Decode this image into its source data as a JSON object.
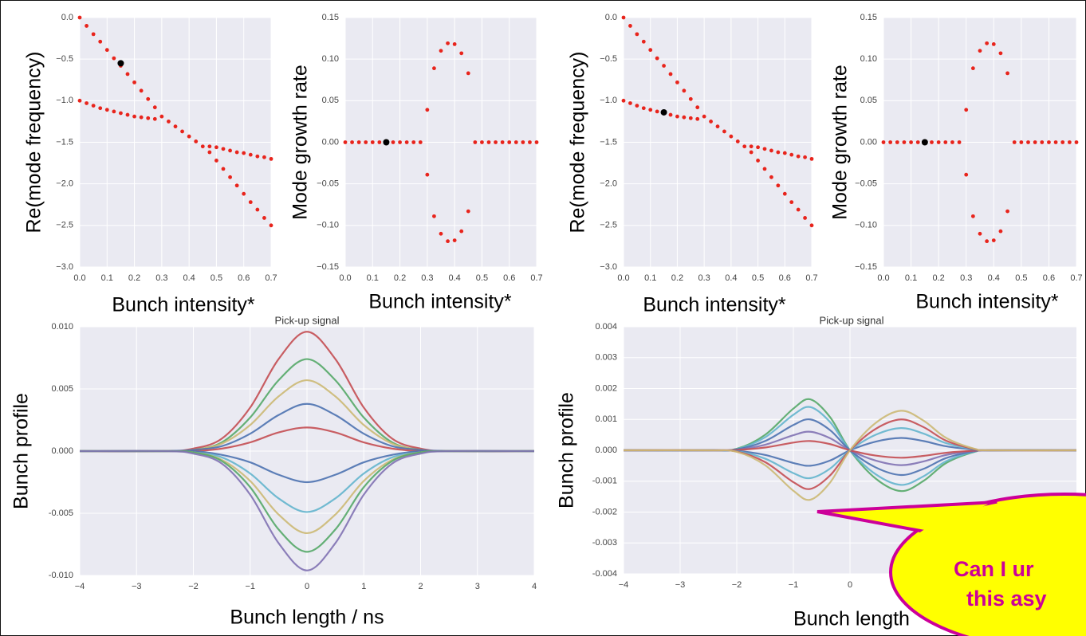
{
  "chart_data": [
    {
      "type": "scatter",
      "xlabel": "Bunch intensity*",
      "ylabel": "Re(mode frequency)",
      "x": [
        0,
        0.025,
        0.05,
        0.075,
        0.1,
        0.125,
        0.15,
        0.175,
        0.2,
        0.225,
        0.25,
        0.275,
        0.3,
        0.325,
        0.35,
        0.375,
        0.4,
        0.425,
        0.45,
        0.475,
        0.5,
        0.525,
        0.55,
        0.575,
        0.6,
        0.625,
        0.65,
        0.675,
        0.7
      ],
      "series": [
        {
          "color": "#e8241c",
          "values": [
            0,
            -0.1,
            -0.2,
            -0.29,
            -0.39,
            -0.49,
            -0.58,
            -0.68,
            -0.78,
            -0.88,
            -0.98,
            -1.08,
            -1.19,
            -1.25,
            -1.31,
            -1.37,
            -1.43,
            -1.49,
            -1.55,
            -1.62,
            -1.72,
            -1.82,
            -1.92,
            -2.02,
            -2.12,
            -2.22,
            -2.31,
            -2.41,
            -2.5
          ]
        },
        {
          "color": "#e8241c",
          "values": [
            -1,
            -1.03,
            -1.06,
            -1.09,
            -1.11,
            -1.13,
            -1.15,
            -1.17,
            -1.19,
            -1.2,
            -1.21,
            -1.22,
            null,
            null,
            null,
            null,
            null,
            null,
            null,
            -1.55,
            -1.56,
            -1.58,
            -1.6,
            -1.62,
            -1.63,
            -1.65,
            -1.67,
            -1.68,
            -1.7
          ]
        }
      ],
      "highlight": {
        "x": 0.15,
        "y": -0.55,
        "color": "#000000"
      },
      "xlim": [
        0,
        0.7
      ],
      "xticks": [
        {
          "value": 0,
          "label": "0.0"
        },
        0.1,
        0.2,
        0.3,
        0.4,
        0.5,
        0.6,
        0.7
      ],
      "ylim": [
        -3,
        0
      ],
      "yticks": [
        {
          "value": 0,
          "label": "0.0"
        },
        {
          "value": -0.5,
          "label": "−0.5"
        },
        {
          "value": -1,
          "label": "−1.0"
        },
        {
          "value": -1.5,
          "label": "−1.5"
        },
        {
          "value": -2,
          "label": "−2.0"
        },
        {
          "value": -2.5,
          "label": "−2.5"
        },
        {
          "value": -3,
          "label": "−3.0"
        }
      ],
      "grid": true
    },
    {
      "type": "scatter",
      "xlabel": "Bunch intensity*",
      "ylabel": "Mode growth rate",
      "x": [
        0,
        0.025,
        0.05,
        0.075,
        0.1,
        0.125,
        0.15,
        0.175,
        0.2,
        0.225,
        0.25,
        0.275,
        0.3,
        0.325,
        0.35,
        0.375,
        0.4,
        0.425,
        0.45,
        0.475,
        0.5,
        0.525,
        0.55,
        0.575,
        0.6,
        0.625,
        0.65,
        0.675,
        0.7
      ],
      "series": [
        {
          "color": "#e8241c",
          "values": [
            0,
            0,
            0,
            0,
            0,
            0,
            0,
            0,
            0,
            0,
            0,
            0,
            0.039,
            0.089,
            0.11,
            0.119,
            0.118,
            0.107,
            0.083,
            0,
            0,
            0,
            0,
            0,
            0,
            0,
            0,
            0,
            0
          ]
        },
        {
          "color": "#e8241c",
          "values": [
            null,
            null,
            null,
            null,
            null,
            null,
            null,
            null,
            null,
            null,
            null,
            null,
            -0.039,
            -0.089,
            -0.11,
            -0.119,
            -0.118,
            -0.107,
            -0.083,
            null,
            null,
            null,
            null,
            null,
            null,
            null,
            null,
            null,
            null
          ]
        }
      ],
      "highlight": {
        "x": 0.15,
        "y": 0,
        "color": "#000000"
      },
      "xlim": [
        0,
        0.7
      ],
      "xticks": [
        {
          "value": 0,
          "label": "0.0"
        },
        0.1,
        0.2,
        0.3,
        0.4,
        0.5,
        0.6,
        0.7
      ],
      "ylim": [
        -0.15,
        0.15
      ],
      "yticks": [
        0.15,
        {
          "value": 0.1,
          "label": "0.10"
        },
        0.05,
        {
          "value": 0,
          "label": "0.00"
        },
        {
          "value": -0.05,
          "label": "−0.05"
        },
        {
          "value": -0.1,
          "label": "−0.10"
        },
        {
          "value": -0.15,
          "label": "−0.15"
        }
      ],
      "grid": true
    },
    {
      "type": "scatter",
      "xlabel": "Bunch intensity*",
      "ylabel": "Re(mode frequency)",
      "x": [
        0,
        0.025,
        0.05,
        0.075,
        0.1,
        0.125,
        0.15,
        0.175,
        0.2,
        0.225,
        0.25,
        0.275,
        0.3,
        0.325,
        0.35,
        0.375,
        0.4,
        0.425,
        0.45,
        0.475,
        0.5,
        0.525,
        0.55,
        0.575,
        0.6,
        0.625,
        0.65,
        0.675,
        0.7
      ],
      "series": [
        {
          "color": "#e8241c",
          "values": [
            0,
            -0.1,
            -0.2,
            -0.29,
            -0.39,
            -0.49,
            -0.58,
            -0.68,
            -0.78,
            -0.88,
            -0.98,
            -1.08,
            -1.19,
            -1.25,
            -1.31,
            -1.37,
            -1.43,
            -1.49,
            -1.55,
            -1.62,
            -1.72,
            -1.82,
            -1.92,
            -2.02,
            -2.12,
            -2.22,
            -2.31,
            -2.41,
            -2.5
          ]
        },
        {
          "color": "#e8241c",
          "values": [
            -1,
            -1.03,
            -1.06,
            -1.09,
            -1.11,
            -1.13,
            -1.15,
            -1.17,
            -1.19,
            -1.2,
            -1.21,
            -1.22,
            null,
            null,
            null,
            null,
            null,
            null,
            null,
            -1.55,
            -1.56,
            -1.58,
            -1.6,
            -1.62,
            -1.63,
            -1.65,
            -1.67,
            -1.68,
            -1.7
          ]
        }
      ],
      "highlight": {
        "x": 0.15,
        "y": -1.14,
        "color": "#000000"
      },
      "xlim": [
        0,
        0.7
      ],
      "xticks": [
        {
          "value": 0,
          "label": "0.0"
        },
        0.1,
        0.2,
        0.3,
        0.4,
        0.5,
        0.6,
        0.7
      ],
      "ylim": [
        -3,
        0
      ],
      "yticks": [
        {
          "value": 0,
          "label": "0.0"
        },
        {
          "value": -0.5,
          "label": "−0.5"
        },
        {
          "value": -1,
          "label": "−1.0"
        },
        {
          "value": -1.5,
          "label": "−1.5"
        },
        {
          "value": -2,
          "label": "−2.0"
        },
        {
          "value": -2.5,
          "label": "−2.5"
        },
        {
          "value": -3,
          "label": "−3.0"
        }
      ],
      "grid": true
    },
    {
      "type": "scatter",
      "xlabel": "Bunch intensity*",
      "ylabel": "Mode growth rate",
      "x": [
        0,
        0.025,
        0.05,
        0.075,
        0.1,
        0.125,
        0.15,
        0.175,
        0.2,
        0.225,
        0.25,
        0.275,
        0.3,
        0.325,
        0.35,
        0.375,
        0.4,
        0.425,
        0.45,
        0.475,
        0.5,
        0.525,
        0.55,
        0.575,
        0.6,
        0.625,
        0.65,
        0.675,
        0.7
      ],
      "series": [
        {
          "color": "#e8241c",
          "values": [
            0,
            0,
            0,
            0,
            0,
            0,
            0,
            0,
            0,
            0,
            0,
            0,
            0.039,
            0.089,
            0.11,
            0.119,
            0.118,
            0.107,
            0.083,
            0,
            0,
            0,
            0,
            0,
            0,
            0,
            0,
            0,
            0
          ]
        },
        {
          "color": "#e8241c",
          "values": [
            null,
            null,
            null,
            null,
            null,
            null,
            null,
            null,
            null,
            null,
            null,
            null,
            -0.039,
            -0.089,
            -0.11,
            -0.119,
            -0.118,
            -0.107,
            -0.083,
            null,
            null,
            null,
            null,
            null,
            null,
            null,
            null,
            null,
            null
          ]
        }
      ],
      "highlight": {
        "x": 0.15,
        "y": 0,
        "color": "#000000"
      },
      "xlim": [
        0,
        0.7
      ],
      "xticks": [
        {
          "value": 0,
          "label": "0.0"
        },
        0.1,
        0.2,
        0.3,
        0.4,
        0.5,
        0.6,
        0.7
      ],
      "ylim": [
        -0.15,
        0.15
      ],
      "yticks": [
        0.15,
        {
          "value": 0.1,
          "label": "0.10"
        },
        0.05,
        {
          "value": 0,
          "label": "0.00"
        },
        {
          "value": -0.05,
          "label": "−0.05"
        },
        {
          "value": -0.1,
          "label": "−0.10"
        },
        {
          "value": -0.15,
          "label": "−0.15"
        }
      ],
      "grid": true
    },
    {
      "type": "line",
      "title": "Pick-up signal",
      "xlabel": "Bunch length / ns",
      "ylabel": "Bunch profile",
      "x": [
        -4,
        -2.5,
        -2,
        -1.5,
        -1,
        -0.5,
        0,
        0.5,
        1,
        1.5,
        2,
        2.5,
        4
      ],
      "series": [
        {
          "color": "#c44e52",
          "values": [
            0,
            0,
            0.0002,
            0.001,
            0.0035,
            0.0074,
            0.0096,
            0.0074,
            0.0035,
            0.001,
            0.0002,
            0,
            0
          ]
        },
        {
          "color": "#55a868",
          "values": [
            0,
            0,
            0.0001,
            0.0007,
            0.0027,
            0.0057,
            0.0074,
            0.0057,
            0.0027,
            0.0007,
            0.0001,
            0,
            0
          ]
        },
        {
          "color": "#ccb974",
          "values": [
            0,
            0,
            0.0001,
            0.0006,
            0.0021,
            0.0044,
            0.0057,
            0.0044,
            0.0021,
            0.0006,
            0.0001,
            0,
            0
          ]
        },
        {
          "color": "#4c72b0",
          "values": [
            0,
            0,
            0.0001,
            0.0004,
            0.0014,
            0.0029,
            0.0038,
            0.0029,
            0.0014,
            0.0004,
            0.0001,
            0,
            0
          ]
        },
        {
          "color": "#c44e52",
          "values": [
            0,
            0,
            0,
            0.0002,
            0.0007,
            0.0015,
            0.0019,
            0.0015,
            0.0007,
            0.0002,
            0,
            0,
            0
          ]
        },
        {
          "color": "#4c72b0",
          "values": [
            0,
            0,
            0,
            -0.0003,
            -0.0009,
            -0.0019,
            -0.0025,
            -0.0019,
            -0.0009,
            -0.0003,
            0,
            0,
            0
          ]
        },
        {
          "color": "#64b5cd",
          "values": [
            0,
            0,
            -0.0001,
            -0.0005,
            -0.0018,
            -0.0038,
            -0.0049,
            -0.0038,
            -0.0018,
            -0.0005,
            -0.0001,
            0,
            0
          ]
        },
        {
          "color": "#ccb974",
          "values": [
            0,
            0,
            -0.0001,
            -0.0007,
            -0.0024,
            -0.0051,
            -0.0066,
            -0.0051,
            -0.0024,
            -0.0007,
            -0.0001,
            0,
            0
          ]
        },
        {
          "color": "#55a868",
          "values": [
            0,
            0,
            -0.0001,
            -0.0008,
            -0.0029,
            -0.0063,
            -0.0081,
            -0.0063,
            -0.0029,
            -0.0008,
            -0.0001,
            0,
            0
          ]
        },
        {
          "color": "#8172b2",
          "values": [
            0,
            0,
            -0.0002,
            -0.001,
            -0.0035,
            -0.0074,
            -0.0096,
            -0.0074,
            -0.0035,
            -0.001,
            -0.0002,
            0,
            0
          ]
        }
      ],
      "xlim": [
        -4,
        4
      ],
      "xticks": [
        {
          "value": -4,
          "label": "−4"
        },
        {
          "value": -3,
          "label": "−3"
        },
        {
          "value": -2,
          "label": "−2"
        },
        {
          "value": -1,
          "label": "−1"
        },
        0,
        1,
        2,
        3,
        4
      ],
      "ylim": [
        -0.01,
        0.01
      ],
      "yticks": [
        {
          "value": 0.01,
          "label": "0.010"
        },
        0.005,
        {
          "value": 0,
          "label": "0.000"
        },
        {
          "value": -0.005,
          "label": "-0.005"
        },
        {
          "value": -0.01,
          "label": "-0.010"
        }
      ],
      "grid": true
    },
    {
      "type": "line",
      "title": "Pick-up signal",
      "xlabel": "Bunch length",
      "ylabel": "Bunch profile",
      "x": [
        -4,
        -2.5,
        -2,
        -1.5,
        -1,
        -0.7,
        -0.35,
        0,
        0.45,
        0.9,
        1.3,
        1.7,
        2.2,
        2.5,
        4
      ],
      "series": [
        {
          "color": "#55a868",
          "values": [
            0,
            0,
            5e-05,
            0.0005,
            0.00135,
            0.00165,
            0.00107,
            0,
            -0.00091,
            -0.00132,
            -0.00099,
            -0.00041,
            -5e-05,
            0,
            0
          ]
        },
        {
          "color": "#64b5cd",
          "values": [
            0,
            0,
            4e-05,
            0.00042,
            0.00115,
            0.0014,
            0.00091,
            0,
            -0.00077,
            -0.00112,
            -0.00084,
            -0.00035,
            -4e-05,
            0,
            0
          ]
        },
        {
          "color": "#4c72b0",
          "values": [
            0,
            0,
            3e-05,
            0.0003,
            0.00082,
            0.001,
            0.00065,
            0,
            -0.00055,
            -0.0008,
            -0.0006,
            -0.00025,
            -3e-05,
            0,
            0
          ]
        },
        {
          "color": "#8172b2",
          "values": [
            0,
            0,
            2e-05,
            0.00018,
            0.00049,
            0.0006,
            0.00039,
            0,
            -0.00033,
            -0.00048,
            -0.00036,
            -0.00015,
            -2e-05,
            0,
            0
          ]
        },
        {
          "color": "#c44e52",
          "values": [
            0,
            0,
            1e-05,
            9e-05,
            0.00025,
            0.0003,
            0.0002,
            0,
            -0.00017,
            -0.00024,
            -0.00018,
            -8e-05,
            -1e-05,
            0,
            0
          ]
        },
        {
          "color": "#4c72b0",
          "values": [
            0,
            0,
            -2e-05,
            -0.00015,
            -0.00041,
            -0.0005,
            -0.00033,
            0,
            0.00028,
            0.0004,
            0.0003,
            0.00013,
            2e-05,
            0,
            0
          ]
        },
        {
          "color": "#64b5cd",
          "values": [
            0,
            0,
            -3e-05,
            -0.00027,
            -0.00074,
            -0.0009,
            -0.00059,
            0,
            0.0005,
            0.00072,
            0.00054,
            0.00023,
            3e-05,
            0,
            0
          ]
        },
        {
          "color": "#c44e52",
          "values": [
            0,
            0,
            -4e-05,
            -0.00038,
            -0.00103,
            -0.00125,
            -0.00081,
            0,
            0.00069,
            0.001,
            0.00075,
            0.00031,
            4e-05,
            0,
            0
          ]
        },
        {
          "color": "#ccb974",
          "values": [
            0,
            0,
            -5e-05,
            -0.00048,
            -0.00131,
            -0.0016,
            -0.00104,
            0,
            0.00088,
            0.00128,
            0.00096,
            0.0004,
            5e-05,
            0,
            0
          ]
        }
      ],
      "xlim": [
        -4,
        4
      ],
      "xticks": [
        {
          "value": -4,
          "label": "−4"
        },
        {
          "value": -3,
          "label": "−3"
        },
        {
          "value": -2,
          "label": "−2"
        },
        {
          "value": -1,
          "label": "−1"
        },
        0
      ],
      "ylim": [
        -0.004,
        0.004
      ],
      "yticks": [
        0.004,
        0.003,
        0.002,
        0.001,
        {
          "value": 0,
          "label": "0.000"
        },
        {
          "value": -0.001,
          "label": "-0.001"
        },
        {
          "value": -0.002,
          "label": "-0.002"
        },
        {
          "value": -0.003,
          "label": "-0.003"
        },
        {
          "value": -0.004,
          "label": "-0.004"
        }
      ],
      "grid": true
    }
  ],
  "callout": {
    "lines": [
      "Can I ur",
      "this asy"
    ]
  }
}
